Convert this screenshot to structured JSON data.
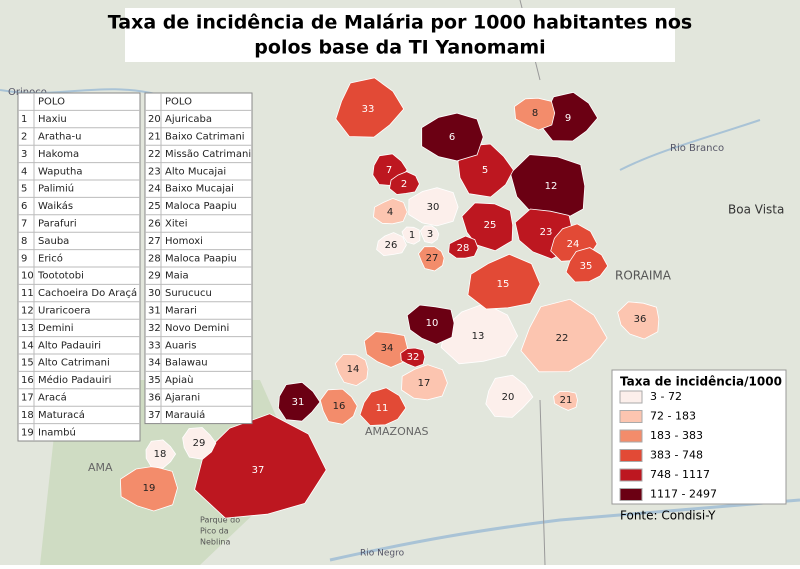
{
  "title_lines": [
    "Taxa de incidência de Malária por 1000 habitantes nos",
    "polos base da TI Yanomami"
  ],
  "tables": [
    {
      "header": "POLO",
      "rows": [
        [
          "1",
          "Haxiu"
        ],
        [
          "2",
          "Aratha-u"
        ],
        [
          "3",
          "Hakoma"
        ],
        [
          "4",
          "Waputha"
        ],
        [
          "5",
          "Palimiú"
        ],
        [
          "6",
          "Waikás"
        ],
        [
          "7",
          "Parafuri"
        ],
        [
          "8",
          "Sauba"
        ],
        [
          "9",
          "Ericó"
        ],
        [
          "10",
          "Toototobi"
        ],
        [
          "11",
          "Cachoeira Do Araçá"
        ],
        [
          "12",
          "Uraricoera"
        ],
        [
          "13",
          "Demini"
        ],
        [
          "14",
          "Alto Padauiri"
        ],
        [
          "15",
          "Alto Catrimani"
        ],
        [
          "16",
          "Médio Padauiri"
        ],
        [
          "17",
          "Aracá"
        ],
        [
          "18",
          "Maturacá"
        ],
        [
          "19",
          "Inambú"
        ]
      ]
    },
    {
      "header": "POLO",
      "rows": [
        [
          "20",
          "Ajuricaba"
        ],
        [
          "21",
          "Baixo Catrimani"
        ],
        [
          "22",
          "Missão Catrimani"
        ],
        [
          "23",
          "Alto Mucajai"
        ],
        [
          "24",
          "Baixo Mucajai"
        ],
        [
          "25",
          "Maloca Paapiu"
        ],
        [
          "26",
          "Xitei"
        ],
        [
          "27",
          "Homoxi"
        ],
        [
          "28",
          "Maloca Paapiu"
        ],
        [
          "29",
          "Maia"
        ],
        [
          "30",
          "Surucucu"
        ],
        [
          "31",
          "Marari"
        ],
        [
          "32",
          "Novo Demini"
        ],
        [
          "33",
          "Auaris"
        ],
        [
          "34",
          "Balawau"
        ],
        [
          "35",
          "Apiaù"
        ],
        [
          "36",
          "Ajarani"
        ],
        [
          "37",
          "Marauiá"
        ]
      ]
    }
  ],
  "legend": {
    "title": "Taxa de incidência/1000",
    "items": [
      {
        "label": "3 - 72",
        "color": "#fcefeb"
      },
      {
        "label": "72 - 183",
        "color": "#fcc5b0"
      },
      {
        "label": "183 - 383",
        "color": "#f38c6b"
      },
      {
        "label": "383 - 748",
        "color": "#e24a36"
      },
      {
        "label": "748 - 1117",
        "color": "#bd1720"
      },
      {
        "label": "1117 - 2497",
        "color": "#6b0013"
      }
    ]
  },
  "source": "Fonte: Condisi-Y",
  "places": [
    "Orinoco",
    "Rio Branco",
    "Boa Vista",
    "RORAIMA",
    "AMAZONAS",
    "AMA",
    "Parque do",
    "Pico da",
    "Neblina",
    "Rio Negro"
  ],
  "regions": [
    {
      "label": "1",
      "class": 0
    },
    {
      "label": "2",
      "class": 4
    },
    {
      "label": "3",
      "class": 0
    },
    {
      "label": "4",
      "class": 1
    },
    {
      "label": "5",
      "class": 4
    },
    {
      "label": "6",
      "class": 5
    },
    {
      "label": "7",
      "class": 4
    },
    {
      "label": "8",
      "class": 2
    },
    {
      "label": "9",
      "class": 5
    },
    {
      "label": "10",
      "class": 5
    },
    {
      "label": "11",
      "class": 3
    },
    {
      "label": "12",
      "class": 5
    },
    {
      "label": "13",
      "class": 0
    },
    {
      "label": "14",
      "class": 1
    },
    {
      "label": "15",
      "class": 3
    },
    {
      "label": "16",
      "class": 2
    },
    {
      "label": "17",
      "class": 1
    },
    {
      "label": "18",
      "class": 0
    },
    {
      "label": "19",
      "class": 2
    },
    {
      "label": "20",
      "class": 0
    },
    {
      "label": "21",
      "class": 1
    },
    {
      "label": "22",
      "class": 1
    },
    {
      "label": "23",
      "class": 4
    },
    {
      "label": "24",
      "class": 3
    },
    {
      "label": "25",
      "class": 4
    },
    {
      "label": "26",
      "class": 0
    },
    {
      "label": "27",
      "class": 2
    },
    {
      "label": "28",
      "class": 4
    },
    {
      "label": "29",
      "class": 0
    },
    {
      "label": "30",
      "class": 0
    },
    {
      "label": "31",
      "class": 5
    },
    {
      "label": "32",
      "class": 4
    },
    {
      "label": "33",
      "class": 3
    },
    {
      "label": "34",
      "class": 2
    },
    {
      "label": "35",
      "class": 3
    },
    {
      "label": "36",
      "class": 1
    },
    {
      "label": "37",
      "class": 4
    }
  ]
}
